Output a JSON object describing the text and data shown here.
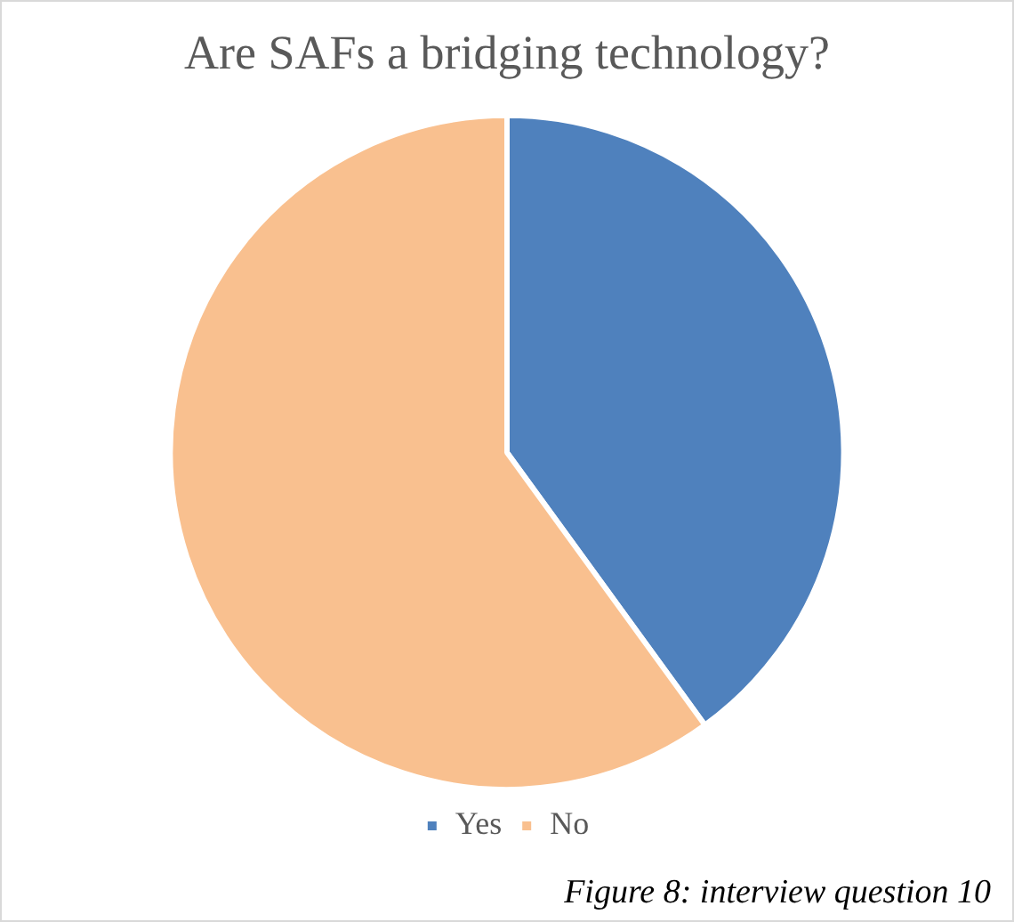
{
  "chart_data": {
    "type": "pie",
    "title": "Are SAFs a bridging technology?",
    "categories": [
      "Yes",
      "No"
    ],
    "values": [
      40,
      60
    ],
    "colors": [
      "#4f81bd",
      "#f9c08f"
    ],
    "legend": "bottom",
    "annotations": [
      "Figure 8: interview question 10"
    ]
  }
}
